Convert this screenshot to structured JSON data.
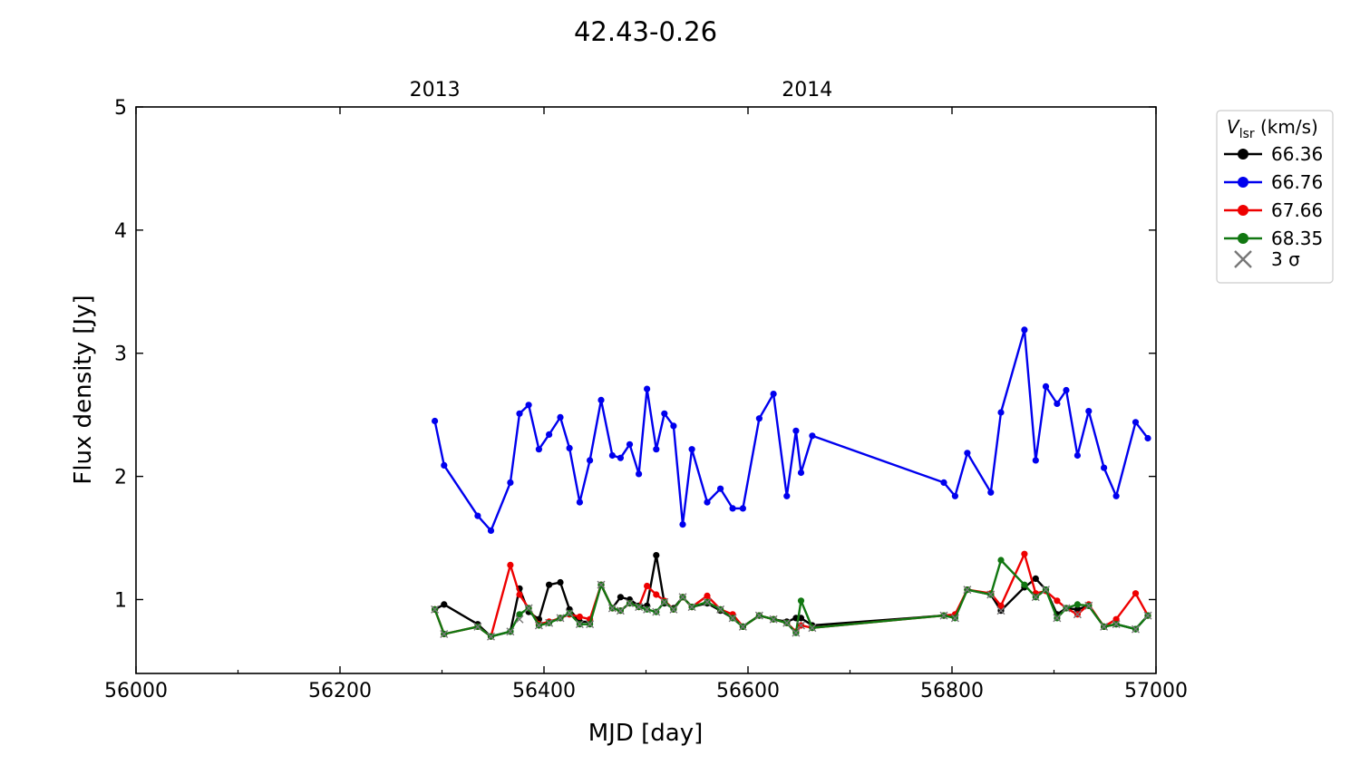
{
  "chart_data": {
    "type": "line",
    "title": "42.43-0.26",
    "xlabel": "MJD [day]",
    "ylabel": "Flux density [Jy]",
    "xlim": [
      56000,
      57000
    ],
    "ylim": [
      0.4,
      5
    ],
    "x_ticks": [
      56000,
      56200,
      56400,
      56600,
      56800,
      57000
    ],
    "y_ticks": [
      1,
      2,
      3,
      4,
      5
    ],
    "top_axis": {
      "ticks": [
        {
          "value": 56293,
          "label": "2013"
        },
        {
          "value": 56658,
          "label": "2014"
        }
      ]
    },
    "legend": {
      "title_main": "V",
      "title_sub": "lsr",
      "title_unit": " (km/s)",
      "placement": "upper-right-outside",
      "sigma_label": "3 σ",
      "sigma_color": "#777777"
    },
    "series": [
      {
        "name": "66.36",
        "color": "#000000",
        "points": [
          [
            56293,
            0.92
          ],
          [
            56302,
            0.96
          ],
          [
            56335,
            0.8
          ],
          [
            56348,
            0.7
          ],
          [
            56367,
            0.74
          ],
          [
            56376,
            1.09
          ],
          [
            56385,
            0.9
          ],
          [
            56395,
            0.84
          ],
          [
            56405,
            1.12
          ],
          [
            56416,
            1.14
          ],
          [
            56425,
            0.92
          ],
          [
            56435,
            0.82
          ],
          [
            56445,
            0.82
          ],
          [
            56456,
            1.12
          ],
          [
            56467,
            0.93
          ],
          [
            56475,
            1.02
          ],
          [
            56484,
            1.0
          ],
          [
            56493,
            0.95
          ],
          [
            56501,
            0.95
          ],
          [
            56510,
            1.36
          ],
          [
            56518,
            0.97
          ],
          [
            56527,
            0.93
          ],
          [
            56536,
            1.02
          ],
          [
            56545,
            0.94
          ],
          [
            56560,
            0.97
          ],
          [
            56573,
            0.91
          ],
          [
            56585,
            0.85
          ],
          [
            56595,
            0.78
          ],
          [
            56611,
            0.87
          ],
          [
            56625,
            0.84
          ],
          [
            56638,
            0.82
          ],
          [
            56647,
            0.85
          ],
          [
            56652,
            0.85
          ],
          [
            56663,
            0.79
          ],
          [
            56792,
            0.87
          ],
          [
            56803,
            0.87
          ],
          [
            56815,
            1.08
          ],
          [
            56838,
            1.04
          ],
          [
            56848,
            0.91
          ],
          [
            56871,
            1.1
          ],
          [
            56882,
            1.17
          ],
          [
            56892,
            1.08
          ],
          [
            56903,
            0.88
          ],
          [
            56912,
            0.93
          ],
          [
            56923,
            0.92
          ],
          [
            56934,
            0.95
          ],
          [
            56949,
            0.78
          ],
          [
            56961,
            0.8
          ],
          [
            56980,
            0.76
          ],
          [
            56992,
            0.87
          ]
        ]
      },
      {
        "name": "66.76",
        "color": "#0000ee",
        "points": [
          [
            56293,
            2.45
          ],
          [
            56302,
            2.09
          ],
          [
            56335,
            1.68
          ],
          [
            56348,
            1.56
          ],
          [
            56367,
            1.95
          ],
          [
            56376,
            2.51
          ],
          [
            56385,
            2.58
          ],
          [
            56395,
            2.22
          ],
          [
            56405,
            2.34
          ],
          [
            56416,
            2.48
          ],
          [
            56425,
            2.23
          ],
          [
            56435,
            1.79
          ],
          [
            56445,
            2.13
          ],
          [
            56456,
            2.62
          ],
          [
            56467,
            2.17
          ],
          [
            56475,
            2.15
          ],
          [
            56484,
            2.26
          ],
          [
            56493,
            2.02
          ],
          [
            56501,
            2.71
          ],
          [
            56510,
            2.22
          ],
          [
            56518,
            2.51
          ],
          [
            56527,
            2.41
          ],
          [
            56536,
            1.61
          ],
          [
            56545,
            2.22
          ],
          [
            56560,
            1.79
          ],
          [
            56573,
            1.9
          ],
          [
            56585,
            1.74
          ],
          [
            56595,
            1.74
          ],
          [
            56611,
            2.47
          ],
          [
            56625,
            2.67
          ],
          [
            56638,
            1.84
          ],
          [
            56647,
            2.37
          ],
          [
            56652,
            2.03
          ],
          [
            56663,
            2.33
          ],
          [
            56792,
            1.95
          ],
          [
            56803,
            1.84
          ],
          [
            56815,
            2.19
          ],
          [
            56838,
            1.87
          ],
          [
            56848,
            2.52
          ],
          [
            56871,
            3.19
          ],
          [
            56882,
            2.13
          ],
          [
            56892,
            2.73
          ],
          [
            56903,
            2.59
          ],
          [
            56912,
            2.7
          ],
          [
            56923,
            2.17
          ],
          [
            56934,
            2.53
          ],
          [
            56949,
            2.07
          ],
          [
            56961,
            1.84
          ],
          [
            56980,
            2.44
          ],
          [
            56992,
            2.31
          ]
        ]
      },
      {
        "name": "67.66",
        "color": "#ee0000",
        "points": [
          [
            56293,
            0.92
          ],
          [
            56302,
            0.72
          ],
          [
            56335,
            0.78
          ],
          [
            56348,
            0.7
          ],
          [
            56367,
            1.28
          ],
          [
            56376,
            1.04
          ],
          [
            56385,
            0.93
          ],
          [
            56395,
            0.8
          ],
          [
            56405,
            0.82
          ],
          [
            56416,
            0.85
          ],
          [
            56425,
            0.88
          ],
          [
            56435,
            0.86
          ],
          [
            56445,
            0.84
          ],
          [
            56456,
            1.12
          ],
          [
            56467,
            0.93
          ],
          [
            56475,
            0.91
          ],
          [
            56484,
            0.97
          ],
          [
            56493,
            0.94
          ],
          [
            56501,
            1.11
          ],
          [
            56510,
            1.04
          ],
          [
            56518,
            0.99
          ],
          [
            56527,
            0.92
          ],
          [
            56536,
            1.02
          ],
          [
            56545,
            0.94
          ],
          [
            56560,
            1.03
          ],
          [
            56573,
            0.92
          ],
          [
            56585,
            0.88
          ],
          [
            56595,
            0.78
          ],
          [
            56611,
            0.87
          ],
          [
            56625,
            0.84
          ],
          [
            56638,
            0.81
          ],
          [
            56647,
            0.74
          ],
          [
            56652,
            0.79
          ],
          [
            56663,
            0.77
          ],
          [
            56792,
            0.87
          ],
          [
            56803,
            0.88
          ],
          [
            56815,
            1.08
          ],
          [
            56838,
            1.05
          ],
          [
            56848,
            0.95
          ],
          [
            56871,
            1.37
          ],
          [
            56882,
            1.05
          ],
          [
            56892,
            1.07
          ],
          [
            56903,
            0.99
          ],
          [
            56912,
            0.93
          ],
          [
            56923,
            0.88
          ],
          [
            56934,
            0.96
          ],
          [
            56949,
            0.78
          ],
          [
            56961,
            0.84
          ],
          [
            56980,
            1.05
          ],
          [
            56992,
            0.87
          ]
        ]
      },
      {
        "name": "68.35",
        "color": "#117711",
        "points": [
          [
            56293,
            0.92
          ],
          [
            56302,
            0.72
          ],
          [
            56335,
            0.78
          ],
          [
            56348,
            0.7
          ],
          [
            56367,
            0.74
          ],
          [
            56376,
            0.88
          ],
          [
            56385,
            0.93
          ],
          [
            56395,
            0.79
          ],
          [
            56405,
            0.81
          ],
          [
            56416,
            0.85
          ],
          [
            56425,
            0.89
          ],
          [
            56435,
            0.8
          ],
          [
            56445,
            0.8
          ],
          [
            56456,
            1.12
          ],
          [
            56467,
            0.93
          ],
          [
            56475,
            0.91
          ],
          [
            56484,
            0.97
          ],
          [
            56493,
            0.94
          ],
          [
            56501,
            0.92
          ],
          [
            56510,
            0.9
          ],
          [
            56518,
            0.98
          ],
          [
            56527,
            0.92
          ],
          [
            56536,
            1.02
          ],
          [
            56545,
            0.94
          ],
          [
            56560,
            0.98
          ],
          [
            56573,
            0.92
          ],
          [
            56585,
            0.85
          ],
          [
            56595,
            0.78
          ],
          [
            56611,
            0.87
          ],
          [
            56625,
            0.84
          ],
          [
            56638,
            0.81
          ],
          [
            56647,
            0.73
          ],
          [
            56652,
            0.99
          ],
          [
            56663,
            0.77
          ],
          [
            56792,
            0.87
          ],
          [
            56803,
            0.85
          ],
          [
            56815,
            1.08
          ],
          [
            56838,
            1.04
          ],
          [
            56848,
            1.32
          ],
          [
            56871,
            1.12
          ],
          [
            56882,
            1.02
          ],
          [
            56892,
            1.08
          ],
          [
            56903,
            0.85
          ],
          [
            56912,
            0.93
          ],
          [
            56923,
            0.96
          ],
          [
            56934,
            0.95
          ],
          [
            56949,
            0.78
          ],
          [
            56961,
            0.8
          ],
          [
            56980,
            0.76
          ],
          [
            56992,
            0.87
          ]
        ]
      }
    ],
    "sigma_points": [
      [
        56293,
        0.92
      ],
      [
        56302,
        0.72
      ],
      [
        56335,
        0.78
      ],
      [
        56348,
        0.7
      ],
      [
        56367,
        0.74
      ],
      [
        56376,
        0.84
      ],
      [
        56385,
        0.93
      ],
      [
        56395,
        0.79
      ],
      [
        56405,
        0.81
      ],
      [
        56416,
        0.85
      ],
      [
        56425,
        0.89
      ],
      [
        56435,
        0.8
      ],
      [
        56445,
        0.8
      ],
      [
        56456,
        1.12
      ],
      [
        56467,
        0.93
      ],
      [
        56475,
        0.91
      ],
      [
        56484,
        0.97
      ],
      [
        56493,
        0.94
      ],
      [
        56501,
        0.92
      ],
      [
        56510,
        0.9
      ],
      [
        56518,
        0.98
      ],
      [
        56527,
        0.92
      ],
      [
        56536,
        1.02
      ],
      [
        56545,
        0.94
      ],
      [
        56560,
        0.98
      ],
      [
        56573,
        0.92
      ],
      [
        56585,
        0.85
      ],
      [
        56595,
        0.78
      ],
      [
        56611,
        0.87
      ],
      [
        56625,
        0.84
      ],
      [
        56638,
        0.81
      ],
      [
        56647,
        0.73
      ],
      [
        56652,
        0.79
      ],
      [
        56663,
        0.77
      ],
      [
        56792,
        0.87
      ],
      [
        56803,
        0.85
      ],
      [
        56815,
        1.08
      ],
      [
        56838,
        1.04
      ],
      [
        56848,
        0.91
      ],
      [
        56882,
        1.02
      ],
      [
        56892,
        1.08
      ],
      [
        56903,
        0.85
      ],
      [
        56912,
        0.93
      ],
      [
        56923,
        0.88
      ],
      [
        56934,
        0.95
      ],
      [
        56949,
        0.78
      ],
      [
        56961,
        0.8
      ],
      [
        56980,
        0.76
      ],
      [
        56992,
        0.87
      ]
    ]
  }
}
